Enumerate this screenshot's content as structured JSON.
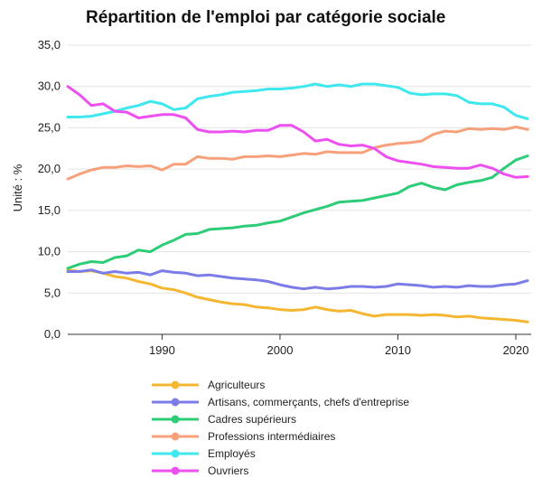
{
  "chart_data": {
    "type": "line",
    "title": "Répartition de l'emploi par catégorie sociale",
    "ylabel": "Unité : %",
    "ylim": [
      0,
      35
    ],
    "xlim": [
      1982,
      2021.3
    ],
    "y_ticks": [
      0,
      5,
      10,
      15,
      20,
      25,
      30,
      35
    ],
    "y_tick_labels": [
      "0,0",
      "5,0",
      "10,0",
      "15,0",
      "20,0",
      "25,0",
      "30,0",
      "35,0"
    ],
    "x_ticks": [
      1990,
      2000,
      2010,
      2020
    ],
    "x_tick_labels": [
      "1990",
      "2000",
      "2010",
      "2020"
    ],
    "grid": "horizontal",
    "legend_position": "bottom",
    "x": [
      1982,
      1983,
      1984,
      1985,
      1986,
      1987,
      1988,
      1989,
      1990,
      1991,
      1992,
      1993,
      1994,
      1995,
      1996,
      1997,
      1998,
      1999,
      2000,
      2001,
      2002,
      2003,
      2004,
      2005,
      2006,
      2007,
      2008,
      2009,
      2010,
      2011,
      2012,
      2013,
      2014,
      2015,
      2016,
      2017,
      2018,
      2019,
      2020,
      2021
    ],
    "series": [
      {
        "name": "Agriculteurs",
        "color": "#F5B731",
        "values": [
          7.8,
          7.6,
          7.7,
          7.4,
          7.0,
          6.8,
          6.4,
          6.1,
          5.6,
          5.4,
          5.0,
          4.5,
          4.2,
          3.9,
          3.7,
          3.6,
          3.3,
          3.2,
          3.0,
          2.9,
          3.0,
          3.3,
          3.0,
          2.8,
          2.9,
          2.5,
          2.2,
          2.4,
          2.4,
          2.4,
          2.3,
          2.4,
          2.3,
          2.1,
          2.2,
          2.0,
          1.9,
          1.8,
          1.7,
          1.5
        ]
      },
      {
        "name": "Artisans, commerçants, chefs d'entreprise",
        "color": "#7C7CE8",
        "values": [
          7.6,
          7.6,
          7.8,
          7.4,
          7.6,
          7.4,
          7.5,
          7.2,
          7.7,
          7.5,
          7.4,
          7.1,
          7.2,
          7.0,
          6.8,
          6.7,
          6.6,
          6.4,
          6.0,
          5.7,
          5.5,
          5.7,
          5.5,
          5.6,
          5.8,
          5.8,
          5.7,
          5.8,
          6.1,
          6.0,
          5.9,
          5.7,
          5.8,
          5.7,
          5.9,
          5.8,
          5.8,
          6.0,
          6.1,
          6.5
        ]
      },
      {
        "name": "Cadres supérieurs",
        "color": "#2DCC77",
        "values": [
          8.0,
          8.5,
          8.8,
          8.7,
          9.3,
          9.5,
          10.2,
          10.0,
          10.8,
          11.4,
          12.1,
          12.2,
          12.7,
          12.8,
          12.9,
          13.1,
          13.2,
          13.5,
          13.7,
          14.2,
          14.7,
          15.1,
          15.5,
          16.0,
          16.1,
          16.2,
          16.5,
          16.8,
          17.1,
          17.9,
          18.3,
          17.8,
          17.5,
          18.1,
          18.4,
          18.6,
          19.0,
          20.1,
          21.1,
          21.6
        ]
      },
      {
        "name": "Professions intermédiaires",
        "color": "#F7A07A",
        "values": [
          18.8,
          19.4,
          19.9,
          20.2,
          20.2,
          20.4,
          20.3,
          20.4,
          19.9,
          20.6,
          20.6,
          21.5,
          21.3,
          21.3,
          21.2,
          21.5,
          21.5,
          21.6,
          21.5,
          21.7,
          21.9,
          21.8,
          22.1,
          22.0,
          22.0,
          22.0,
          22.6,
          22.9,
          23.1,
          23.2,
          23.4,
          24.2,
          24.6,
          24.5,
          24.9,
          24.8,
          24.9,
          24.8,
          25.1,
          24.8
        ]
      },
      {
        "name": "Employés",
        "color": "#3EE8EE",
        "values": [
          26.3,
          26.3,
          26.4,
          26.7,
          27.0,
          27.4,
          27.7,
          28.2,
          27.9,
          27.2,
          27.4,
          28.5,
          28.8,
          29.0,
          29.3,
          29.4,
          29.5,
          29.7,
          29.7,
          29.8,
          30.0,
          30.3,
          30.0,
          30.2,
          30.0,
          30.3,
          30.3,
          30.1,
          29.9,
          29.2,
          29.0,
          29.1,
          29.1,
          28.9,
          28.1,
          27.9,
          27.9,
          27.5,
          26.5,
          26.1
        ]
      },
      {
        "name": "Ouvriers",
        "color": "#EE4FF0",
        "values": [
          30.0,
          29.0,
          27.7,
          27.9,
          27.0,
          26.9,
          26.2,
          26.4,
          26.6,
          26.6,
          26.2,
          24.8,
          24.5,
          24.5,
          24.6,
          24.5,
          24.7,
          24.7,
          25.3,
          25.3,
          24.5,
          23.4,
          23.6,
          23.0,
          22.8,
          22.9,
          22.5,
          21.5,
          21.0,
          20.8,
          20.6,
          20.3,
          20.2,
          20.1,
          20.1,
          20.5,
          20.1,
          19.4,
          19.0,
          19.1
        ]
      }
    ]
  }
}
